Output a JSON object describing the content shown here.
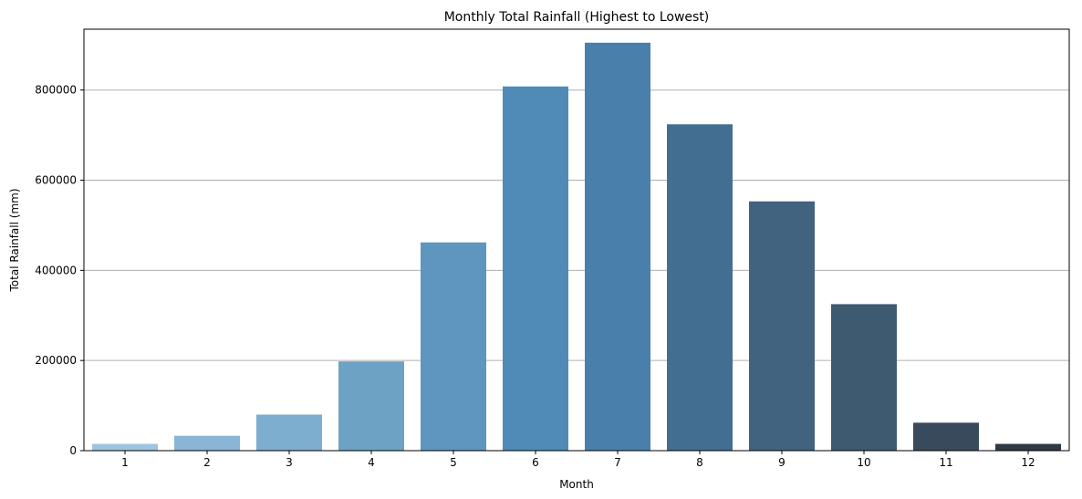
{
  "chart_data": {
    "type": "bar",
    "title": "Monthly Total Rainfall (Highest to Lowest)",
    "xlabel": "Month",
    "ylabel": "Total Rainfall (mm)",
    "categories": [
      "1",
      "2",
      "3",
      "4",
      "5",
      "6",
      "7",
      "8",
      "9",
      "10",
      "11",
      "12"
    ],
    "values": [
      15000,
      33000,
      80000,
      198000,
      462000,
      808000,
      905000,
      724000,
      553000,
      325000,
      62000,
      15000
    ],
    "colors": [
      "#9ec4e0",
      "#8ab5d6",
      "#7dadcf",
      "#6ea2c4",
      "#5e96bf",
      "#4f8bb6",
      "#4880ab",
      "#426f91",
      "#41637f",
      "#3d5a70",
      "#394a5c",
      "#2f3a45"
    ],
    "ylim": [
      0,
      935000
    ],
    "yticks": [
      0,
      200000,
      400000,
      600000,
      800000
    ],
    "ytick_labels": [
      "0",
      "200000",
      "400000",
      "600000",
      "800000"
    ],
    "grid": "y"
  }
}
